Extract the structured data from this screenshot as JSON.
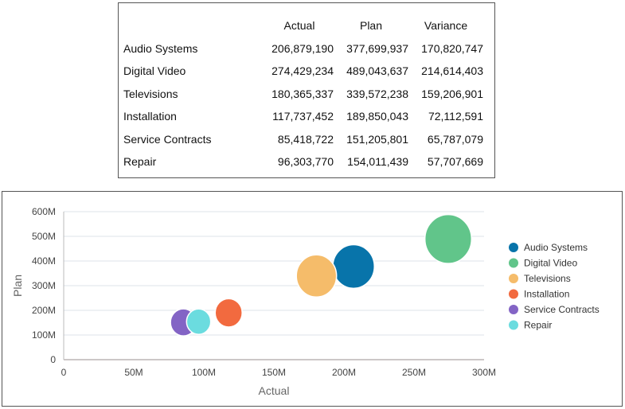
{
  "table": {
    "headers": [
      "",
      "Actual",
      "Plan",
      "Variance"
    ],
    "rows": [
      {
        "label": "Audio Systems",
        "actual": "206,879,190",
        "plan": "377,699,937",
        "variance": "170,820,747"
      },
      {
        "label": "Digital Video",
        "actual": "274,429,234",
        "plan": "489,043,637",
        "variance": "214,614,403"
      },
      {
        "label": "Televisions",
        "actual": "180,365,337",
        "plan": "339,572,238",
        "variance": "159,206,901"
      },
      {
        "label": "Installation",
        "actual": "117,737,452",
        "plan": "189,850,043",
        "variance": "72,112,591"
      },
      {
        "label": "Service Contracts",
        "actual": "85,418,722",
        "plan": "151,205,801",
        "variance": "65,787,079"
      },
      {
        "label": "Repair",
        "actual": "96,303,770",
        "plan": "154,011,439",
        "variance": "57,707,669"
      }
    ]
  },
  "chart_data": {
    "type": "bubble",
    "xlabel": "Actual",
    "ylabel": "Plan",
    "xlim": [
      0,
      300000000
    ],
    "ylim": [
      0,
      600000000
    ],
    "xticks": [
      "0",
      "50M",
      "100M",
      "150M",
      "200M",
      "250M",
      "300M"
    ],
    "yticks": [
      "0",
      "100M",
      "200M",
      "300M",
      "400M",
      "500M",
      "600M"
    ],
    "grid": true,
    "legend": "right",
    "size_field": "Variance",
    "series": [
      {
        "name": "Audio Systems",
        "x": 206879190,
        "y": 377699937,
        "size": 170820747,
        "color": "#0874AA"
      },
      {
        "name": "Digital Video",
        "x": 274429234,
        "y": 489043637,
        "size": 214614403,
        "color": "#61C58A"
      },
      {
        "name": "Televisions",
        "x": 180365337,
        "y": 339572238,
        "size": 159206901,
        "color": "#F5BC6A"
      },
      {
        "name": "Installation",
        "x": 117737452,
        "y": 189850043,
        "size": 72112591,
        "color": "#F26A3F"
      },
      {
        "name": "Service Contracts",
        "x": 85418722,
        "y": 151205801,
        "size": 65787079,
        "color": "#8364C5"
      },
      {
        "name": "Repair",
        "x": 96303770,
        "y": 154011439,
        "size": 57707669,
        "color": "#6BDCDF"
      }
    ]
  }
}
